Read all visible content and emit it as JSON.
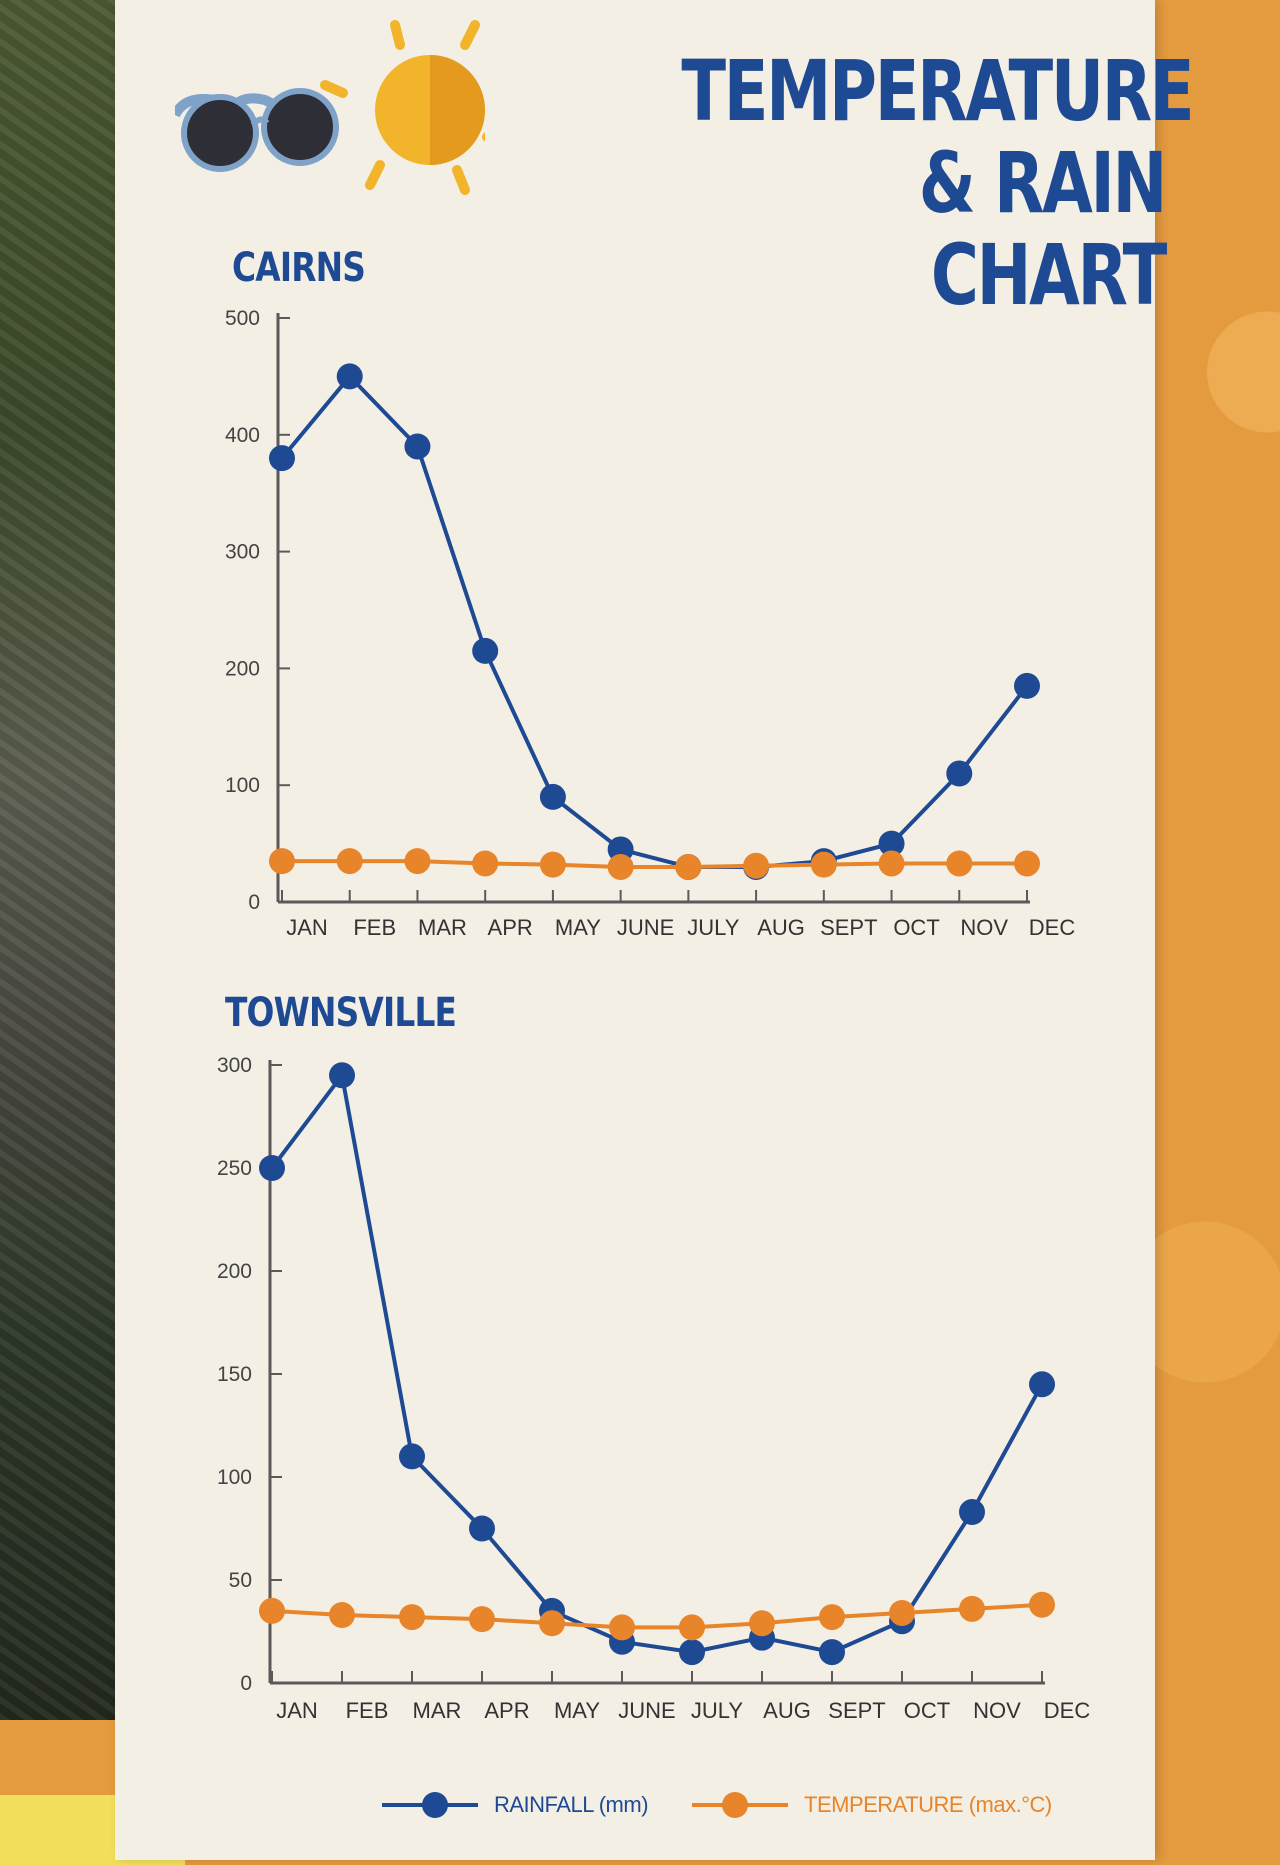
{
  "header": {
    "title_line1": "TEMPERATURE",
    "title_line2": "& RAIN CHART"
  },
  "colors": {
    "rainfall": "#1e4a94",
    "temperature": "#e8852a",
    "title": "#1e4a94",
    "axis": "#5a5a5a"
  },
  "legend": {
    "rainfall_label": "RAINFALL (mm)",
    "temperature_label": "TEMPERATURE (max.°C)"
  },
  "chart_data": [
    {
      "type": "line",
      "title": "CAIRNS",
      "categories": [
        "JAN",
        "FEB",
        "MAR",
        "APR",
        "MAY",
        "JUNE",
        "JULY",
        "AUG",
        "SEPT",
        "OCT",
        "NOV",
        "DEC"
      ],
      "ylim": [
        0,
        500
      ],
      "yticks": [
        0,
        100,
        200,
        300,
        400,
        500
      ],
      "series": [
        {
          "name": "RAINFALL (mm)",
          "values": [
            380,
            450,
            390,
            215,
            90,
            45,
            30,
            30,
            35,
            50,
            110,
            185
          ]
        },
        {
          "name": "TEMPERATURE (max.°C)",
          "values": [
            35,
            35,
            35,
            33,
            32,
            30,
            30,
            31,
            32,
            33,
            33,
            33
          ]
        }
      ],
      "grid": false,
      "legend": "bottom"
    },
    {
      "type": "line",
      "title": "TOWNSVILLE",
      "categories": [
        "JAN",
        "FEB",
        "MAR",
        "APR",
        "MAY",
        "JUNE",
        "JULY",
        "AUG",
        "SEPT",
        "OCT",
        "NOV",
        "DEC"
      ],
      "ylim": [
        0,
        300
      ],
      "yticks": [
        0,
        50,
        100,
        150,
        200,
        250,
        300
      ],
      "series": [
        {
          "name": "RAINFALL (mm)",
          "values": [
            250,
            295,
            110,
            75,
            35,
            20,
            15,
            22,
            15,
            30,
            83,
            145
          ]
        },
        {
          "name": "TEMPERATURE (max.°C)",
          "values": [
            35,
            33,
            32,
            31,
            29,
            27,
            27,
            29,
            32,
            34,
            36,
            38
          ]
        }
      ],
      "grid": false,
      "legend": "bottom"
    }
  ]
}
